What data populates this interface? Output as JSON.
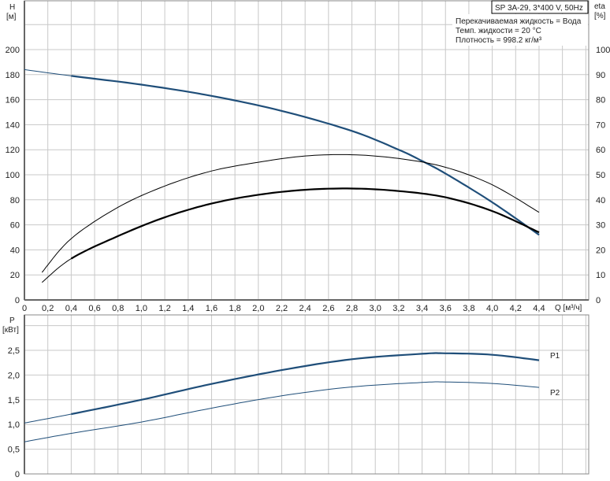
{
  "chart_data": [
    {
      "type": "line",
      "title": "SP 3A-29, 3*400 V, 50Hz",
      "annotations": [
        "Перекачиваемая жидкость = Вода",
        "Темп. жидкости = 20 °C",
        "Плотность = 998.2 кг/м³"
      ],
      "xlabel": "Q [м³/ч]",
      "ylabel": "H",
      "ylabel_unit": "[м]",
      "y2label": "eta",
      "y2label_unit": "[%]",
      "xlim": [
        0,
        4.8
      ],
      "ylim": [
        0,
        240
      ],
      "y2lim": [
        0,
        120
      ],
      "grid": true,
      "x_ticks": [
        "0",
        "0,2",
        "0,4",
        "0,6",
        "0,8",
        "1,0",
        "1,2",
        "1,4",
        "1,6",
        "1,8",
        "2,0",
        "2,2",
        "2,4",
        "2,6",
        "2,8",
        "3,0",
        "3,2",
        "3,4",
        "3,6",
        "3,8",
        "4,0",
        "4,2",
        "4,4"
      ],
      "y_ticks": [
        "0",
        "20",
        "40",
        "60",
        "80",
        "100",
        "120",
        "140",
        "160",
        "180",
        "200"
      ],
      "y2_ticks": [
        "0",
        "10",
        "20",
        "30",
        "40",
        "50",
        "60",
        "70",
        "80",
        "90",
        "100"
      ],
      "series": [
        {
          "axis": "left",
          "color": "#1f4e79",
          "x": [
            0,
            0.4,
            1.0,
            1.6,
            2.2,
            2.8,
            3.2,
            3.4,
            3.6,
            4.0,
            4.4
          ],
          "values": [
            184,
            179,
            172,
            163,
            151,
            135,
            120,
            111,
            101,
            78,
            52
          ],
          "thick_from": 0.4
        },
        {
          "axis": "right",
          "color": "#000000",
          "x": [
            0.15,
            0.4,
            0.8,
            1.2,
            1.6,
            2.0,
            2.4,
            2.8,
            3.2,
            3.6,
            4.0,
            4.4
          ],
          "values": [
            11,
            24.5,
            37,
            45.5,
            51.5,
            55,
            57.5,
            58,
            56.5,
            53,
            46,
            35
          ],
          "thick_from": null
        },
        {
          "axis": "right",
          "color": "#000000",
          "x": [
            0.15,
            0.4,
            0.8,
            1.2,
            1.6,
            2.0,
            2.4,
            2.8,
            3.2,
            3.6,
            4.0,
            4.4
          ],
          "values": [
            7,
            16.5,
            25.5,
            33,
            38.5,
            42,
            44,
            44.5,
            43.5,
            41,
            35.5,
            27
          ],
          "thick_from": 0.4
        }
      ]
    },
    {
      "type": "line",
      "ylabel": "P",
      "ylabel_unit": "[кВт]",
      "xlim": [
        0,
        4.8
      ],
      "ylim": [
        0,
        3.0
      ],
      "grid": true,
      "y_ticks": [
        "0",
        "0,5",
        "1,0",
        "1,5",
        "2,0",
        "2,5"
      ],
      "series": [
        {
          "name": "P1",
          "color": "#1f4e79",
          "x": [
            0,
            0.4,
            1.0,
            1.6,
            2.2,
            2.8,
            3.4,
            3.6,
            4.0,
            4.4
          ],
          "values": [
            1.03,
            1.21,
            1.5,
            1.82,
            2.1,
            2.32,
            2.43,
            2.44,
            2.41,
            2.3
          ],
          "thick_from": 0.4
        },
        {
          "name": "P2",
          "color": "#1f4e79",
          "x": [
            0,
            0.4,
            1.0,
            1.6,
            2.2,
            2.8,
            3.4,
            3.6,
            4.0,
            4.4
          ],
          "values": [
            0.65,
            0.82,
            1.05,
            1.33,
            1.58,
            1.76,
            1.85,
            1.86,
            1.83,
            1.75
          ],
          "thick_from": null
        }
      ]
    }
  ]
}
